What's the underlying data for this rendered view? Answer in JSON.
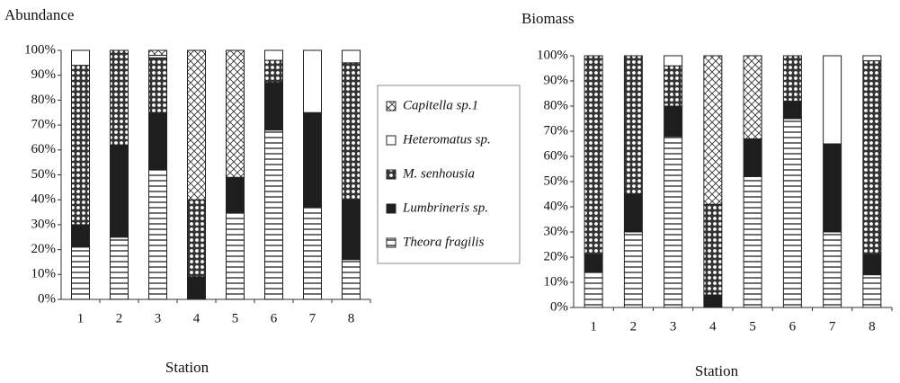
{
  "chart_data": [
    {
      "type": "bar",
      "stacked": true,
      "title": "Abundance",
      "xlabel": "Station",
      "categories": [
        "1",
        "2",
        "3",
        "4",
        "5",
        "6",
        "7",
        "8"
      ],
      "ylim": [
        0,
        100
      ],
      "yticks": [
        {
          "value": 0,
          "label": "0%"
        },
        {
          "value": 10,
          "label": "10%"
        },
        {
          "value": 20,
          "label": "20%"
        },
        {
          "value": 30,
          "label": "30%"
        },
        {
          "value": 40,
          "label": "40%"
        },
        {
          "value": 50,
          "label": "50%"
        },
        {
          "value": 60,
          "label": "60%"
        },
        {
          "value": 70,
          "label": "70%"
        },
        {
          "value": 80,
          "label": "80%"
        },
        {
          "value": 90,
          "label": "90%"
        },
        {
          "value": 100,
          "label": "100%"
        }
      ],
      "series": [
        {
          "name": "Theora fragilis",
          "pattern": "hlines",
          "values": [
            21,
            25,
            52,
            0,
            35,
            68,
            37,
            16
          ]
        },
        {
          "name": "Lumbrineris sp.",
          "pattern": "solid",
          "values": [
            9,
            37,
            23,
            9,
            14,
            19,
            38,
            24
          ]
        },
        {
          "name": "M. senhousia",
          "pattern": "dots",
          "values": [
            64,
            38,
            22,
            31,
            0,
            9,
            0,
            55
          ]
        },
        {
          "name": "Heteromatus sp.",
          "pattern": "blank",
          "values": [
            6,
            0,
            1,
            0,
            0,
            4,
            25,
            5
          ]
        },
        {
          "name": "Capitella sp.1",
          "pattern": "crosshatch",
          "values": [
            0,
            0,
            2,
            60,
            51,
            0,
            0,
            0
          ]
        }
      ]
    },
    {
      "type": "bar",
      "stacked": true,
      "title": "Biomass",
      "xlabel": "Station",
      "categories": [
        "1",
        "2",
        "3",
        "4",
        "5",
        "6",
        "7",
        "8"
      ],
      "ylim": [
        0,
        100
      ],
      "yticks": [
        {
          "value": 0,
          "label": "0%"
        },
        {
          "value": 10,
          "label": "10%"
        },
        {
          "value": 20,
          "label": "20%"
        },
        {
          "value": 30,
          "label": "30%"
        },
        {
          "value": 40,
          "label": "40%"
        },
        {
          "value": 50,
          "label": "50%"
        },
        {
          "value": 60,
          "label": "60%"
        },
        {
          "value": 70,
          "label": "70%"
        },
        {
          "value": 80,
          "label": "80%"
        },
        {
          "value": 90,
          "label": "90%"
        },
        {
          "value": 100,
          "label": "100%"
        }
      ],
      "series": [
        {
          "pattern": "hlines",
          "values": [
            14,
            30,
            68,
            0,
            52,
            75,
            30,
            13
          ]
        },
        {
          "pattern": "solid",
          "values": [
            7,
            15,
            12,
            5,
            15,
            7,
            35,
            8
          ]
        },
        {
          "pattern": "dots",
          "values": [
            79,
            55,
            16,
            36,
            0,
            18,
            0,
            77
          ]
        },
        {
          "pattern": "blank",
          "values": [
            0,
            0,
            4,
            0,
            0,
            0,
            35,
            2
          ]
        },
        {
          "pattern": "crosshatch",
          "values": [
            0,
            0,
            0,
            59,
            33,
            0,
            0,
            0
          ]
        }
      ]
    }
  ]
}
